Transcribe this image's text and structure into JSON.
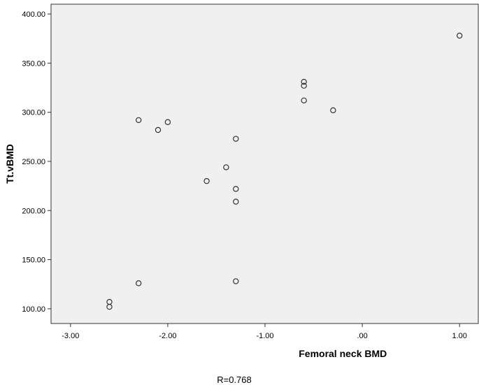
{
  "chart_data": {
    "type": "scatter",
    "xlabel": "Femoral neck BMD",
    "ylabel": "Tt.vBMD",
    "xlim": [
      -3.2,
      1.2
    ],
    "ylim": [
      85,
      410
    ],
    "x_ticks": [
      -3,
      -2,
      -1,
      0,
      1
    ],
    "x_tick_labels": [
      "-3.00",
      "-2.00",
      "-1.00",
      ".00",
      "1.00"
    ],
    "y_ticks": [
      100,
      150,
      200,
      250,
      300,
      350,
      400
    ],
    "y_tick_labels": [
      "100.00",
      "150.00",
      "200.00",
      "250.00",
      "300.00",
      "350.00",
      "400.00"
    ],
    "grid": false,
    "background_color": "#f0f0f0",
    "marker_color": "#333333",
    "points": [
      {
        "x": 1.0,
        "y": 378
      },
      {
        "x": -0.6,
        "y": 331
      },
      {
        "x": -0.6,
        "y": 327
      },
      {
        "x": -0.6,
        "y": 312
      },
      {
        "x": -0.3,
        "y": 302
      },
      {
        "x": -2.3,
        "y": 292
      },
      {
        "x": -2.0,
        "y": 290
      },
      {
        "x": -2.1,
        "y": 282
      },
      {
        "x": -1.3,
        "y": 273
      },
      {
        "x": -1.4,
        "y": 244
      },
      {
        "x": -1.6,
        "y": 230
      },
      {
        "x": -1.3,
        "y": 222
      },
      {
        "x": -1.3,
        "y": 209
      },
      {
        "x": -1.3,
        "y": 128
      },
      {
        "x": -2.3,
        "y": 126
      },
      {
        "x": -2.6,
        "y": 107
      },
      {
        "x": -2.6,
        "y": 102
      }
    ]
  },
  "footnote": "R=0.768"
}
